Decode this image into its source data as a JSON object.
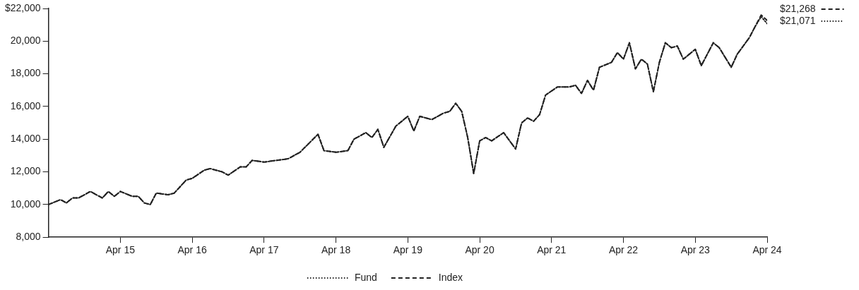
{
  "chart_data": {
    "type": "line",
    "grid": false,
    "legend": "bottom",
    "marker": "none",
    "xlim": [
      "2014-04",
      "2024-04"
    ],
    "xticks": [
      {
        "value": "2015-04",
        "label": "Apr 15"
      },
      {
        "value": "2016-04",
        "label": "Apr 16"
      },
      {
        "value": "2017-04",
        "label": "Apr 17"
      },
      {
        "value": "2018-04",
        "label": "Apr 18"
      },
      {
        "value": "2019-04",
        "label": "Apr 19"
      },
      {
        "value": "2020-04",
        "label": "Apr 20"
      },
      {
        "value": "2021-04",
        "label": "Apr 21"
      },
      {
        "value": "2022-04",
        "label": "Apr 22"
      },
      {
        "value": "2023-04",
        "label": "Apr 23"
      },
      {
        "value": "2024-04",
        "label": "Apr 24"
      }
    ],
    "ylim": [
      8000,
      22000
    ],
    "yticks": [
      {
        "value": 8000,
        "label": "8,000"
      },
      {
        "value": 10000,
        "label": "10,000"
      },
      {
        "value": 12000,
        "label": "12,000"
      },
      {
        "value": 14000,
        "label": "14,000"
      },
      {
        "value": 16000,
        "label": "16,000"
      },
      {
        "value": 18000,
        "label": "18,000"
      },
      {
        "value": 20000,
        "label": "20,000"
      },
      {
        "value": 22000,
        "label": "$22,000"
      }
    ],
    "x": [
      "2014-04",
      "2014-06",
      "2014-07",
      "2014-08",
      "2014-09",
      "2014-11",
      "2015-01",
      "2015-02",
      "2015-03",
      "2015-04",
      "2015-06",
      "2015-07",
      "2015-08",
      "2015-09",
      "2015-10",
      "2015-12",
      "2016-01",
      "2016-03",
      "2016-04",
      "2016-06",
      "2016-07",
      "2016-09",
      "2016-10",
      "2016-12",
      "2017-01",
      "2017-02",
      "2017-04",
      "2017-06",
      "2017-08",
      "2017-10",
      "2018-01",
      "2018-02",
      "2018-04",
      "2018-06",
      "2018-07",
      "2018-09",
      "2018-10",
      "2018-11",
      "2018-12",
      "2019-02",
      "2019-04",
      "2019-05",
      "2019-06",
      "2019-08",
      "2019-10",
      "2019-11",
      "2019-12",
      "2020-01",
      "2020-02",
      "2020-03",
      "2020-04",
      "2020-05",
      "2020-06",
      "2020-08",
      "2020-10",
      "2020-11",
      "2020-12",
      "2021-01",
      "2021-02",
      "2021-03",
      "2021-05",
      "2021-07",
      "2021-08",
      "2021-09",
      "2021-10",
      "2021-11",
      "2021-12",
      "2022-02",
      "2022-03",
      "2022-04",
      "2022-05",
      "2022-06",
      "2022-07",
      "2022-08",
      "2022-09",
      "2022-10",
      "2022-11",
      "2022-12",
      "2023-01",
      "2023-02",
      "2023-04",
      "2023-05",
      "2023-07",
      "2023-08",
      "2023-10",
      "2023-11",
      "2024-01",
      "2024-02",
      "2024-03",
      "2024-04"
    ],
    "series": [
      {
        "name": "Fund",
        "color": "#222222",
        "line_style": "dotted",
        "values": [
          10000,
          10300,
          10100,
          10400,
          10400,
          10800,
          10400,
          10800,
          10500,
          10800,
          10500,
          10500,
          10100,
          10000,
          10700,
          10600,
          10700,
          11500,
          11600,
          12100,
          12200,
          12000,
          11800,
          12300,
          12300,
          12700,
          12600,
          12700,
          12800,
          13200,
          14300,
          13300,
          13200,
          13300,
          14000,
          14400,
          14100,
          14600,
          13500,
          14800,
          15400,
          14500,
          15400,
          15200,
          15600,
          15700,
          16200,
          15700,
          14100,
          11900,
          13900,
          14100,
          13900,
          14400,
          13400,
          15000,
          15300,
          15100,
          15500,
          16700,
          17200,
          17200,
          17300,
          16800,
          17600,
          17000,
          18400,
          18700,
          19300,
          18900,
          19900,
          18300,
          18900,
          18600,
          16900,
          18700,
          19900,
          19600,
          19700,
          18900,
          19500,
          18500,
          19900,
          19600,
          18400,
          19200,
          20200,
          20900,
          21500,
          21071
        ]
      },
      {
        "name": "Index",
        "color": "#222222",
        "line_style": "dashed",
        "values": [
          10000,
          10300,
          10100,
          10400,
          10400,
          10800,
          10400,
          10800,
          10500,
          10800,
          10500,
          10500,
          10100,
          10000,
          10700,
          10600,
          10700,
          11500,
          11600,
          12100,
          12200,
          12000,
          11800,
          12300,
          12300,
          12700,
          12600,
          12700,
          12800,
          13200,
          14300,
          13300,
          13200,
          13300,
          14000,
          14400,
          14100,
          14600,
          13500,
          14800,
          15400,
          14500,
          15400,
          15200,
          15600,
          15700,
          16200,
          15700,
          14100,
          11900,
          13900,
          14100,
          13900,
          14400,
          13400,
          15000,
          15300,
          15100,
          15500,
          16700,
          17200,
          17200,
          17300,
          16800,
          17600,
          17000,
          18400,
          18700,
          19300,
          18900,
          19900,
          18300,
          18900,
          18600,
          16900,
          18700,
          19900,
          19600,
          19700,
          18900,
          19500,
          18500,
          19900,
          19600,
          18400,
          19200,
          20200,
          20900,
          21600,
          21268
        ]
      }
    ],
    "annotations": [
      {
        "text": "$21,268",
        "x": "2024-04",
        "y": 21268
      },
      {
        "text": "$21,071",
        "x": "2024-04",
        "y": 21071
      }
    ]
  }
}
